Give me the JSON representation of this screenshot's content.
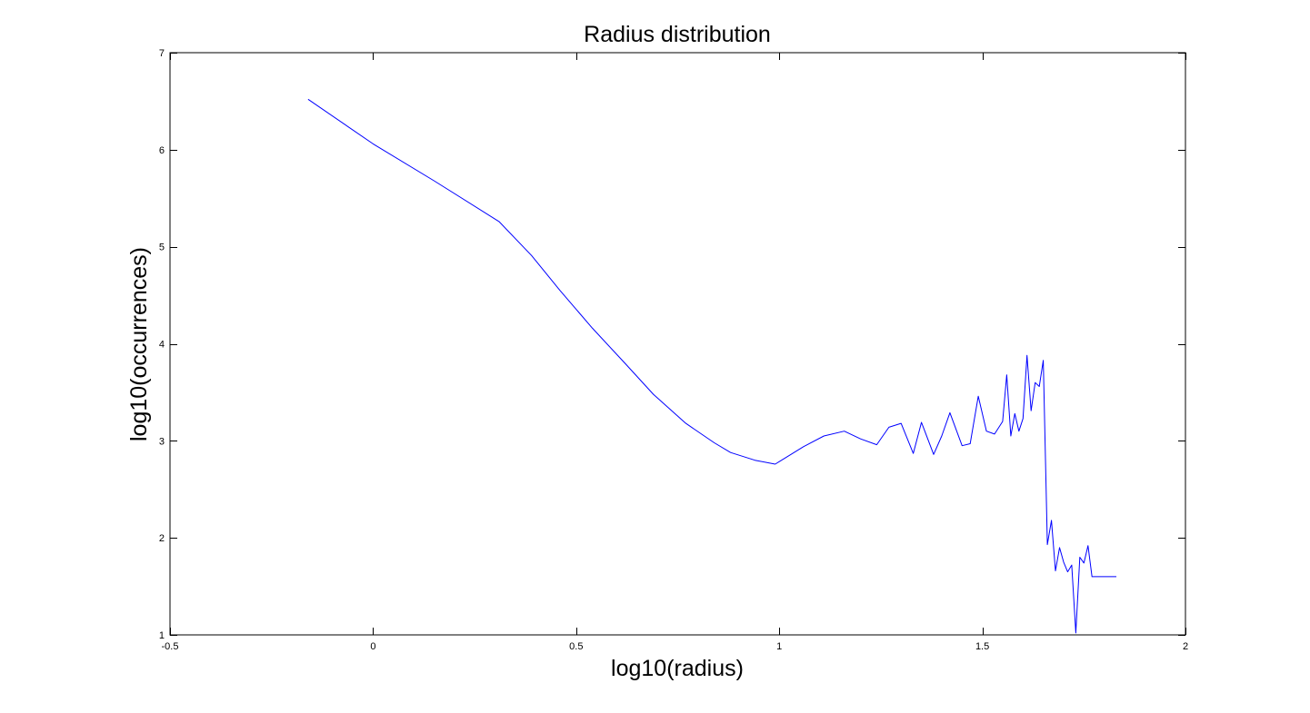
{
  "chart_data": {
    "type": "line",
    "title": "Radius distribution",
    "xlabel": "log10(radius)",
    "ylabel": "log10(occurrences)",
    "xlim": [
      -0.5,
      2
    ],
    "ylim": [
      1,
      7
    ],
    "xticks": [
      -0.5,
      0,
      0.5,
      1,
      1.5,
      2
    ],
    "yticks": [
      1,
      2,
      3,
      4,
      5,
      6,
      7
    ],
    "xtick_labels": [
      "-0.5",
      "0",
      "0.5",
      "1",
      "1.5",
      "2"
    ],
    "ytick_labels": [
      "1",
      "2",
      "3",
      "4",
      "5",
      "6",
      "7"
    ],
    "grid": false,
    "legend": "none",
    "colors": {
      "line": "#0000ff",
      "axes": "#000000",
      "background": "#ffffff"
    },
    "series": [
      {
        "x": [
          -0.16,
          0.0,
          0.15,
          0.31,
          0.39,
          0.46,
          0.54,
          0.62,
          0.69,
          0.77,
          0.84,
          0.88,
          0.94,
          0.99,
          1.06,
          1.11,
          1.16,
          1.2,
          1.24,
          1.27,
          1.3,
          1.33,
          1.35,
          1.38,
          1.4,
          1.42,
          1.45,
          1.47,
          1.49,
          1.51,
          1.53,
          1.55,
          1.56,
          1.57,
          1.58,
          1.59,
          1.6,
          1.61,
          1.62,
          1.63,
          1.64,
          1.65,
          1.66,
          1.67,
          1.68,
          1.69,
          1.7,
          1.71,
          1.72,
          1.73,
          1.74,
          1.75,
          1.76,
          1.77,
          1.78,
          1.79,
          1.8,
          1.81,
          1.82,
          1.83
        ],
        "y": [
          6.52,
          6.06,
          5.68,
          5.26,
          4.91,
          4.55,
          4.16,
          3.8,
          3.48,
          3.18,
          2.98,
          2.88,
          2.8,
          2.76,
          2.94,
          3.05,
          3.1,
          3.02,
          2.96,
          3.14,
          3.18,
          2.87,
          3.19,
          2.86,
          3.05,
          3.29,
          2.95,
          2.97,
          3.46,
          3.1,
          3.07,
          3.2,
          3.68,
          3.05,
          3.28,
          3.1,
          3.23,
          3.88,
          3.31,
          3.6,
          3.56,
          3.83,
          1.93,
          2.18,
          1.66,
          1.9,
          1.75,
          1.65,
          1.72,
          1.02,
          1.8,
          1.74,
          1.92,
          1.6,
          1.6,
          1.6,
          1.6,
          1.6,
          1.6,
          1.6
        ]
      }
    ]
  }
}
